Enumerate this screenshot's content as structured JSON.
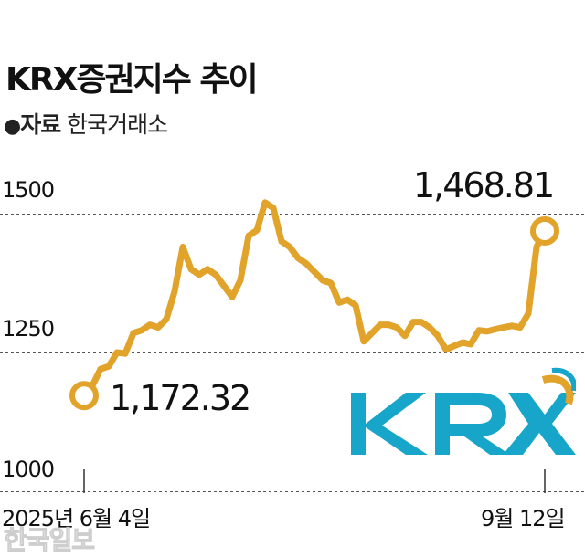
{
  "chart_data": {
    "type": "line",
    "title": "KRX증권지수 추이",
    "source_label": "자료",
    "source": "한국거래소",
    "yticks": [
      "1500",
      "1250",
      "1000"
    ],
    "ylim": [
      1000,
      1500
    ],
    "xlabels": [
      "2025년 6월 4일",
      "9월 12일"
    ],
    "start_value_label": "1,172.32",
    "end_value_label": "1,468.81",
    "color": "#E1A32A",
    "grid": true,
    "series": [
      {
        "values": [
          1172.32,
          1190,
          1220,
          1225,
          1250,
          1248,
          1285,
          1290,
          1300,
          1295,
          1310,
          1360,
          1440,
          1400,
          1390,
          1400,
          1390,
          1370,
          1350,
          1380,
          1460,
          1470,
          1520,
          1510,
          1450,
          1440,
          1420,
          1410,
          1395,
          1380,
          1375,
          1340,
          1345,
          1335,
          1270,
          1285,
          1300,
          1300,
          1295,
          1280,
          1305,
          1305,
          1295,
          1280,
          1255,
          1262,
          1268,
          1265,
          1290,
          1288,
          1292,
          1295,
          1298,
          1295,
          1320,
          1440,
          1468.81
        ]
      }
    ]
  },
  "watermark": "한국일보",
  "logo": {
    "text": "KRX",
    "color": "#17A6C9",
    "accent": "#E1A32A"
  }
}
